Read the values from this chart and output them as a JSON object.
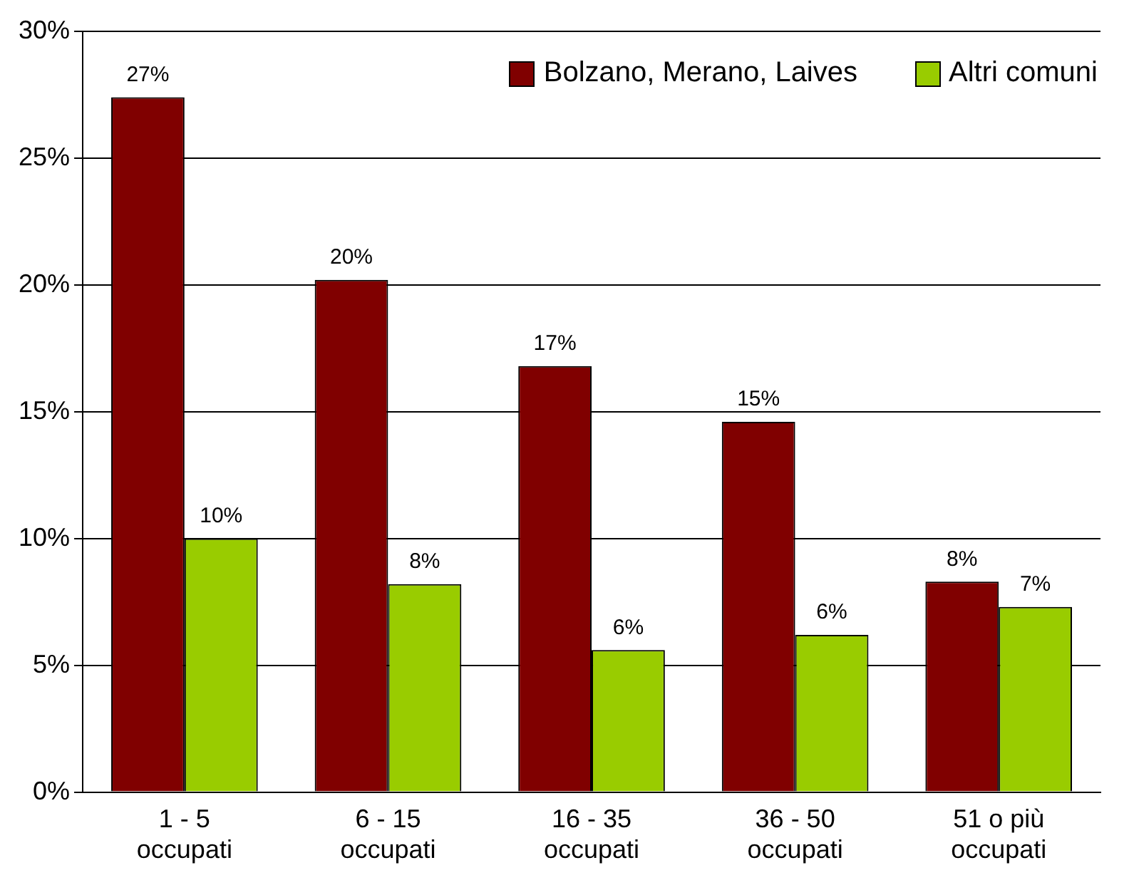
{
  "chart_data": {
    "type": "bar",
    "categories": [
      "1 - 5\noccupati",
      "6 - 15\noccupati",
      "16 - 35\noccupati",
      "36 - 50\noccupati",
      "51 o più\noccupati"
    ],
    "series": [
      {
        "name": "Bolzano, Merano, Laives",
        "color": "#800000",
        "values": [
          27.4,
          20.2,
          16.8,
          14.6,
          8.3
        ],
        "value_labels": [
          "27%",
          "20%",
          "17%",
          "15%",
          "8%"
        ]
      },
      {
        "name": "Altri comuni",
        "color": "#99cc00",
        "values": [
          10.0,
          8.2,
          5.6,
          6.2,
          7.3
        ],
        "value_labels": [
          "10%",
          "8%",
          "6%",
          "6%",
          "7%"
        ]
      }
    ],
    "ylim": [
      0,
      30
    ],
    "yticks": [
      {
        "value": 0,
        "label": "0%"
      },
      {
        "value": 5,
        "label": "5%"
      },
      {
        "value": 10,
        "label": "10%"
      },
      {
        "value": 15,
        "label": "15%"
      },
      {
        "value": 20,
        "label": "20%"
      },
      {
        "value": 25,
        "label": "25%"
      },
      {
        "value": 30,
        "label": "30%"
      }
    ],
    "grid": "y",
    "legend": "top right"
  }
}
